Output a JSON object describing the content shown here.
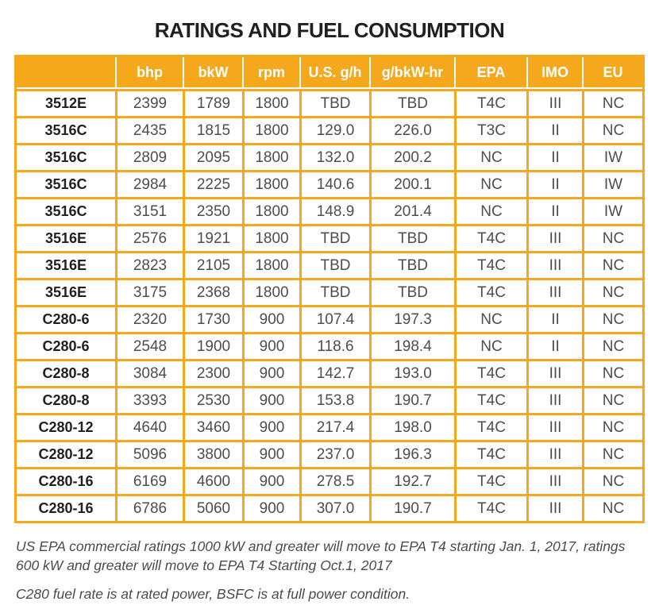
{
  "title": "RATINGS AND FUEL CONSUMPTION",
  "table": {
    "columns": [
      "",
      "bhp",
      "bkW",
      "rpm",
      "U.S. g/h",
      "g/bkW-hr",
      "EPA",
      "IMO",
      "EU"
    ],
    "rows": [
      [
        "3512E",
        "2399",
        "1789",
        "1800",
        "TBD",
        "TBD",
        "T4C",
        "III",
        "NC"
      ],
      [
        "3516C",
        "2435",
        "1815",
        "1800",
        "129.0",
        "226.0",
        "T3C",
        "II",
        "NC"
      ],
      [
        "3516C",
        "2809",
        "2095",
        "1800",
        "132.0",
        "200.2",
        "NC",
        "II",
        "IW"
      ],
      [
        "3516C",
        "2984",
        "2225",
        "1800",
        "140.6",
        "200.1",
        "NC",
        "II",
        "IW"
      ],
      [
        "3516C",
        "3151",
        "2350",
        "1800",
        "148.9",
        "201.4",
        "NC",
        "II",
        "IW"
      ],
      [
        "3516E",
        "2576",
        "1921",
        "1800",
        "TBD",
        "TBD",
        "T4C",
        "III",
        "NC"
      ],
      [
        "3516E",
        "2823",
        "2105",
        "1800",
        "TBD",
        "TBD",
        "T4C",
        "III",
        "NC"
      ],
      [
        "3516E",
        "3175",
        "2368",
        "1800",
        "TBD",
        "TBD",
        "T4C",
        "III",
        "NC"
      ],
      [
        "C280-6",
        "2320",
        "1730",
        "900",
        "107.4",
        "197.3",
        "NC",
        "II",
        "NC"
      ],
      [
        "C280-6",
        "2548",
        "1900",
        "900",
        "118.6",
        "198.4",
        "NC",
        "II",
        "NC"
      ],
      [
        "C280-8",
        "3084",
        "2300",
        "900",
        "142.7",
        "193.0",
        "T4C",
        "III",
        "NC"
      ],
      [
        "C280-8",
        "3393",
        "2530",
        "900",
        "153.8",
        "190.7",
        "T4C",
        "III",
        "NC"
      ],
      [
        "C280-12",
        "4640",
        "3460",
        "900",
        "217.4",
        "198.0",
        "T4C",
        "III",
        "NC"
      ],
      [
        "C280-12",
        "5096",
        "3800",
        "900",
        "237.0",
        "196.3",
        "T4C",
        "III",
        "NC"
      ],
      [
        "C280-16",
        "6169",
        "4600",
        "900",
        "278.5",
        "192.7",
        "T4C",
        "III",
        "NC"
      ],
      [
        "C280-16",
        "6786",
        "5060",
        "900",
        "307.0",
        "190.7",
        "T4C",
        "III",
        "NC"
      ]
    ]
  },
  "footnotes": [
    "US EPA commercial ratings 1000 kW and greater will move to EPA T4 starting Jan. 1, 2017, ratings 600 kW and greater will move to EPA T4 Starting Oct.1, 2017",
    "C280 fuel rate is at rated power, BSFC is at full power condition."
  ],
  "colors": {
    "accent": "#F6A81C",
    "header_text": "#FFFFFF",
    "model_text": "#231F20",
    "data_text": "#4D4D4F"
  }
}
